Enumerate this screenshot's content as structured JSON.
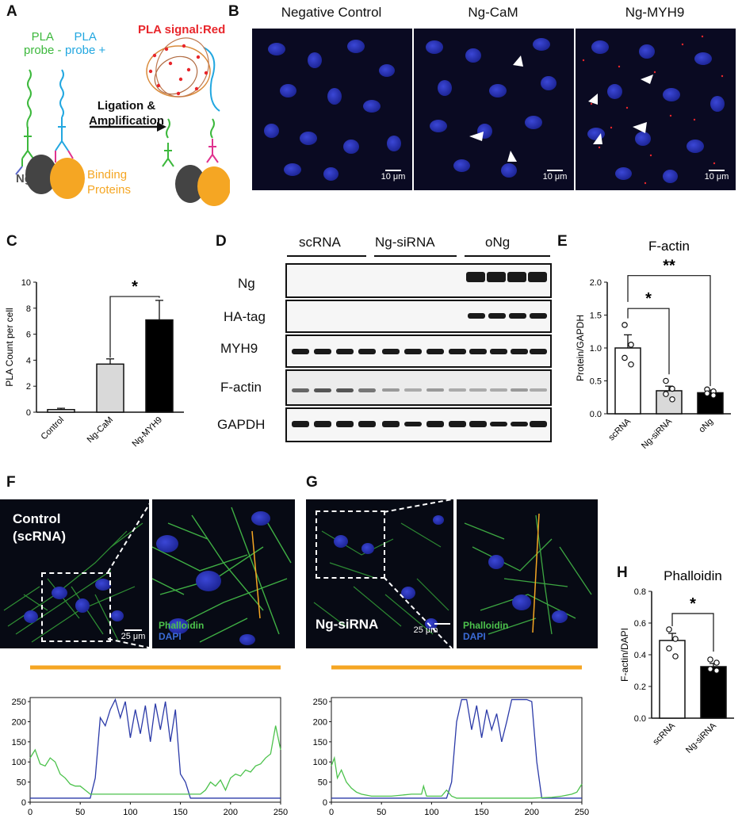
{
  "panels": {
    "A": "A",
    "B": "B",
    "C": "C",
    "D": "D",
    "E": "E",
    "F": "F",
    "G": "G",
    "H": "H"
  },
  "panelA": {
    "probe_minus": [
      "PLA",
      "probe -"
    ],
    "probe_plus": [
      "PLA",
      "probe +"
    ],
    "signal": "PLA signal:Red",
    "arrow_text": [
      "Ligation &",
      "Amplification"
    ],
    "ng": "Ng",
    "binding": [
      "Binding",
      "Proteins"
    ]
  },
  "panelB": {
    "headers": [
      "Negative Control",
      "Ng-CaM",
      "Ng-MYH9"
    ],
    "scale": "10 μm"
  },
  "panelD": {
    "groups": [
      "scRNA",
      "Ng-siRNA",
      "oNg"
    ],
    "rows": [
      "Ng",
      "HA-tag",
      "MYH9",
      "F-actin",
      "GAPDH"
    ]
  },
  "panelF": {
    "title": [
      "Control",
      "(scRNA)"
    ],
    "phalloidin": "Phalloidin",
    "dapi": "DAPI",
    "scale": "25 μm"
  },
  "panelG": {
    "title": "Ng-siRNA",
    "phalloidin": "Phalloidin",
    "dapi": "DAPI",
    "scale": "25 μm"
  },
  "colors": {
    "green": "#4cc24c",
    "blue": "#2b3aa8",
    "orange": "#f5a623",
    "red": "#e8262b",
    "pla_minus": "#3cb83c",
    "pla_plus": "#22a7e0",
    "binding": "#f5a623"
  },
  "chart_data": [
    {
      "id": "C",
      "type": "bar",
      "categories": [
        "Control",
        "Ng-CaM",
        "Ng-MYH9"
      ],
      "values": [
        0.2,
        3.7,
        7.1
      ],
      "errors": [
        0.1,
        0.4,
        1.5
      ],
      "colors": [
        "#ffffff",
        "#d9d9d9",
        "#000000"
      ],
      "ylabel": "PLA Count per cell",
      "ylim": [
        0,
        10
      ],
      "yticks": [
        "0",
        "2",
        "4",
        "6",
        "8",
        "10"
      ],
      "significance": [
        {
          "pair": [
            "Ng-CaM",
            "Ng-MYH9"
          ],
          "mark": "*"
        }
      ]
    },
    {
      "id": "E",
      "type": "bar",
      "title": "F-actin",
      "categories": [
        "scRNA",
        "Ng-siRNA",
        "oNg"
      ],
      "values": [
        1.0,
        0.35,
        0.32
      ],
      "errors": [
        0.2,
        0.07,
        0.04
      ],
      "points": [
        [
          1.35,
          1.05,
          0.85,
          0.75
        ],
        [
          0.5,
          0.38,
          0.3,
          0.22
        ],
        [
          0.37,
          0.34,
          0.31,
          0.28
        ]
      ],
      "colors": [
        "#ffffff",
        "#d9d9d9",
        "#000000"
      ],
      "ylabel": "Protein/GAPDH",
      "ylim": [
        0,
        2.0
      ],
      "yticks": [
        "0.0",
        "0.5",
        "1.0",
        "1.5",
        "2.0"
      ],
      "significance": [
        {
          "pair": [
            "scRNA",
            "Ng-siRNA"
          ],
          "mark": "*"
        },
        {
          "pair": [
            "scRNA",
            "oNg"
          ],
          "mark": "**"
        }
      ]
    },
    {
      "id": "H",
      "type": "bar",
      "title": "Phalloidin",
      "categories": [
        "scRNA",
        "Ng-siRNA"
      ],
      "values": [
        0.49,
        0.325
      ],
      "errors": [
        0.045,
        0.02
      ],
      "points": [
        [
          0.56,
          0.5,
          0.44,
          0.39
        ],
        [
          0.37,
          0.35,
          0.31,
          0.3
        ]
      ],
      "colors": [
        "#ffffff",
        "#000000"
      ],
      "ylabel": "F-actin/DAPI",
      "ylim": [
        0,
        0.8
      ],
      "yticks": [
        "0.0",
        "0.2",
        "0.4",
        "0.6",
        "0.8"
      ],
      "significance": [
        {
          "pair": [
            "scRNA",
            "Ng-siRNA"
          ],
          "mark": "*"
        }
      ]
    },
    {
      "id": "F-profile",
      "type": "line",
      "xlim": [
        0,
        250
      ],
      "ylim": [
        0,
        260
      ],
      "xticks": [
        "0",
        "50",
        "100",
        "150",
        "200",
        "250"
      ],
      "yticks": [
        "0",
        "50",
        "100",
        "150",
        "200",
        "250"
      ],
      "series": [
        {
          "color": "blue",
          "x": [
            0,
            60,
            65,
            70,
            75,
            80,
            85,
            90,
            95,
            100,
            105,
            110,
            115,
            120,
            125,
            130,
            135,
            140,
            145,
            150,
            155,
            160,
            250
          ],
          "y": [
            10,
            10,
            60,
            210,
            190,
            230,
            255,
            210,
            250,
            160,
            230,
            170,
            240,
            150,
            245,
            180,
            250,
            150,
            230,
            70,
            50,
            10,
            10
          ]
        },
        {
          "color": "green",
          "x": [
            0,
            5,
            10,
            15,
            20,
            25,
            30,
            35,
            40,
            45,
            50,
            55,
            60,
            70,
            100,
            130,
            160,
            170,
            175,
            180,
            185,
            190,
            195,
            200,
            205,
            210,
            215,
            220,
            225,
            230,
            235,
            240,
            245,
            250
          ],
          "y": [
            110,
            130,
            95,
            90,
            110,
            100,
            70,
            60,
            45,
            40,
            40,
            30,
            20,
            20,
            20,
            20,
            20,
            20,
            30,
            50,
            40,
            55,
            30,
            60,
            70,
            65,
            80,
            75,
            90,
            95,
            110,
            120,
            190,
            130
          ]
        }
      ]
    },
    {
      "id": "G-profile",
      "type": "line",
      "xlim": [
        0,
        250
      ],
      "ylim": [
        0,
        260
      ],
      "xticks": [
        "0",
        "50",
        "100",
        "150",
        "200",
        "250"
      ],
      "yticks": [
        "0",
        "50",
        "100",
        "150",
        "200",
        "250"
      ],
      "series": [
        {
          "color": "blue",
          "x": [
            0,
            115,
            120,
            125,
            130,
            135,
            140,
            145,
            150,
            155,
            160,
            165,
            170,
            175,
            180,
            185,
            190,
            195,
            200,
            205,
            210,
            250
          ],
          "y": [
            10,
            10,
            50,
            200,
            255,
            255,
            180,
            240,
            160,
            230,
            180,
            220,
            150,
            200,
            255,
            255,
            255,
            255,
            250,
            100,
            10,
            10
          ]
        },
        {
          "color": "green",
          "x": [
            0,
            3,
            6,
            10,
            15,
            20,
            25,
            30,
            40,
            60,
            80,
            90,
            92,
            95,
            110,
            115,
            120,
            125,
            140,
            200,
            220,
            230,
            240,
            245,
            250
          ],
          "y": [
            90,
            110,
            60,
            80,
            50,
            35,
            25,
            20,
            15,
            15,
            20,
            20,
            40,
            15,
            15,
            30,
            15,
            10,
            10,
            10,
            12,
            15,
            20,
            25,
            45
          ]
        }
      ]
    }
  ]
}
